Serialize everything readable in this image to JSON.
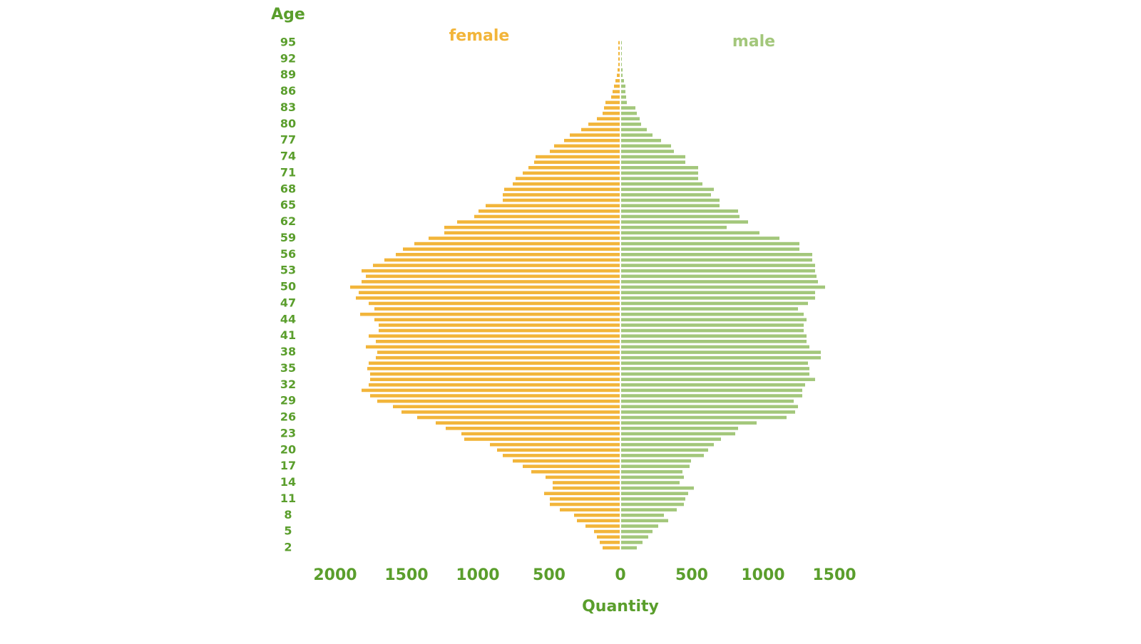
{
  "chart_data": {
    "type": "pyramid",
    "y_label": "Age",
    "x_label": "Quantity",
    "label_color": "#5a9e2c",
    "categories": [
      "2",
      null,
      null,
      "5",
      null,
      null,
      "8",
      null,
      null,
      "11",
      null,
      null,
      "14",
      null,
      null,
      "17",
      null,
      null,
      "20",
      null,
      null,
      "23",
      null,
      null,
      "26",
      null,
      null,
      "29",
      null,
      null,
      "32",
      null,
      null,
      "35",
      null,
      null,
      "38",
      null,
      null,
      "41",
      null,
      null,
      "44",
      null,
      null,
      "47",
      null,
      null,
      "50",
      null,
      null,
      "53",
      null,
      null,
      "56",
      null,
      null,
      "59",
      null,
      null,
      "62",
      null,
      null,
      "65",
      null,
      null,
      "68",
      null,
      null,
      "71",
      null,
      null,
      "74",
      null,
      null,
      "77",
      null,
      null,
      "80",
      null,
      null,
      "83",
      null,
      null,
      "86",
      null,
      null,
      "89",
      null,
      null,
      "92",
      null,
      null,
      "95"
    ],
    "series": [
      {
        "name": "female",
        "color": "#f2b53a",
        "side": "left",
        "values": [
          120,
          140,
          160,
          180,
          240,
          300,
          320,
          420,
          490,
          490,
          530,
          470,
          470,
          520,
          620,
          680,
          750,
          820,
          860,
          910,
          1090,
          1110,
          1220,
          1290,
          1420,
          1530,
          1590,
          1700,
          1750,
          1810,
          1760,
          1750,
          1750,
          1770,
          1760,
          1710,
          1700,
          1780,
          1710,
          1760,
          1690,
          1690,
          1720,
          1820,
          1720,
          1760,
          1850,
          1830,
          1890,
          1810,
          1780,
          1810,
          1730,
          1650,
          1570,
          1520,
          1440,
          1340,
          1230,
          1230,
          1140,
          1020,
          990,
          940,
          820,
          820,
          810,
          750,
          730,
          680,
          640,
          600,
          590,
          490,
          460,
          390,
          350,
          270,
          220,
          160,
          120,
          110,
          100,
          60,
          50,
          40,
          30,
          20,
          15,
          10,
          10,
          10,
          10,
          10
        ]
      },
      {
        "name": "male",
        "color": "#a3c77b",
        "side": "right",
        "values": [
          110,
          150,
          190,
          220,
          260,
          330,
          300,
          390,
          440,
          450,
          470,
          510,
          410,
          440,
          430,
          480,
          490,
          580,
          610,
          650,
          700,
          800,
          820,
          950,
          1160,
          1220,
          1240,
          1210,
          1270,
          1270,
          1290,
          1360,
          1320,
          1320,
          1310,
          1400,
          1400,
          1320,
          1300,
          1300,
          1280,
          1280,
          1300,
          1280,
          1240,
          1310,
          1360,
          1360,
          1430,
          1380,
          1370,
          1360,
          1360,
          1340,
          1340,
          1250,
          1250,
          1110,
          970,
          740,
          890,
          830,
          820,
          690,
          690,
          630,
          650,
          570,
          540,
          540,
          540,
          450,
          450,
          370,
          350,
          280,
          220,
          180,
          140,
          130,
          110,
          100,
          40,
          35,
          30,
          30,
          20,
          10,
          10,
          5,
          5,
          5,
          5,
          5
        ]
      }
    ],
    "xlim": [
      0,
      2000
    ],
    "xticks": [
      0,
      500,
      1000,
      1500,
      2000
    ],
    "x2ticks": [
      500,
      1000,
      1500
    ]
  }
}
